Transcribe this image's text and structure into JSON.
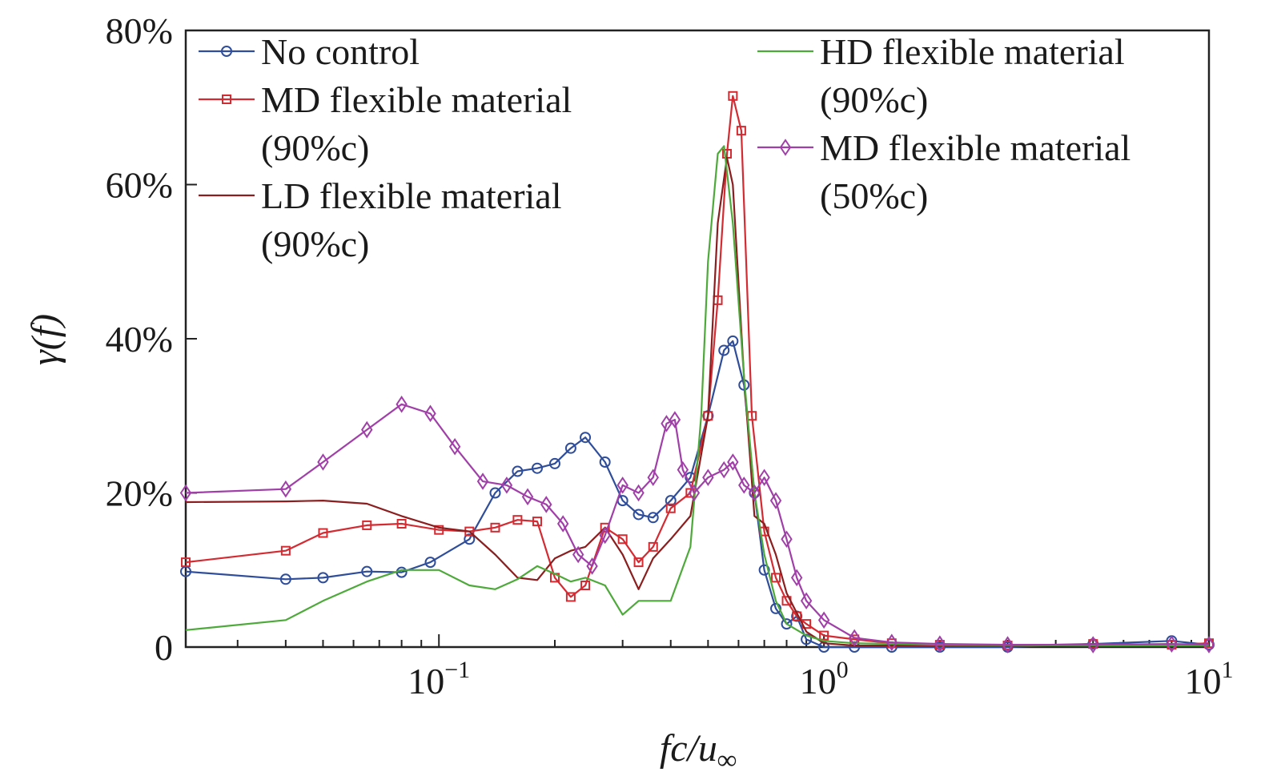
{
  "chart_data": {
    "type": "line",
    "title": "",
    "xlabel_parts": {
      "main": "fc/u",
      "sub": "∞"
    },
    "ylabel_parts": {
      "main": "γ(f)"
    },
    "x_scale": "log",
    "xlim": [
      0.022,
      10
    ],
    "ylim": [
      0,
      0.8
    ],
    "x_ticks": [
      {
        "value": 0.1,
        "base": "10",
        "exp": "−1"
      },
      {
        "value": 1,
        "base": "10",
        "exp": "0"
      },
      {
        "value": 10,
        "base": "10",
        "exp": "1"
      }
    ],
    "y_ticks": [
      {
        "value": 0,
        "label": "0"
      },
      {
        "value": 0.2,
        "label": "20%"
      },
      {
        "value": 0.4,
        "label": "40%"
      },
      {
        "value": 0.6,
        "label": "60%"
      },
      {
        "value": 0.8,
        "label": "80%"
      }
    ],
    "legend_position": "top",
    "series": [
      {
        "name": "No control",
        "legend_lines": [
          "No control"
        ],
        "color": "#2e4d9a",
        "marker": "circle",
        "x": [
          0.022,
          0.04,
          0.05,
          0.065,
          0.08,
          0.095,
          0.12,
          0.14,
          0.16,
          0.18,
          0.2,
          0.22,
          0.24,
          0.27,
          0.3,
          0.33,
          0.36,
          0.4,
          0.45,
          0.5,
          0.55,
          0.58,
          0.62,
          0.66,
          0.7,
          0.75,
          0.8,
          0.85,
          0.9,
          1.0,
          1.2,
          1.5,
          2,
          3,
          5,
          8,
          10
        ],
        "y": [
          0.098,
          0.088,
          0.09,
          0.098,
          0.097,
          0.11,
          0.14,
          0.2,
          0.228,
          0.232,
          0.238,
          0.258,
          0.272,
          0.24,
          0.19,
          0.172,
          0.168,
          0.19,
          0.22,
          0.3,
          0.385,
          0.397,
          0.34,
          0.2,
          0.1,
          0.05,
          0.03,
          0.04,
          0.01,
          0.0,
          0.0,
          0.0,
          0.0,
          0.0,
          0.004,
          0.008,
          0.003
        ]
      },
      {
        "name": "MD flexible material (90%c)",
        "legend_lines": [
          "MD flexible material",
          "(90%c)"
        ],
        "color": "#d42a32",
        "marker": "square",
        "x": [
          0.022,
          0.04,
          0.05,
          0.065,
          0.08,
          0.1,
          0.12,
          0.14,
          0.16,
          0.18,
          0.2,
          0.22,
          0.24,
          0.27,
          0.3,
          0.33,
          0.36,
          0.4,
          0.45,
          0.5,
          0.53,
          0.56,
          0.58,
          0.61,
          0.65,
          0.7,
          0.75,
          0.8,
          0.85,
          0.9,
          1.0,
          1.2,
          1.5,
          2,
          3,
          5,
          8,
          10
        ],
        "y": [
          0.11,
          0.125,
          0.148,
          0.158,
          0.16,
          0.152,
          0.15,
          0.155,
          0.165,
          0.163,
          0.09,
          0.065,
          0.08,
          0.155,
          0.14,
          0.11,
          0.13,
          0.18,
          0.2,
          0.3,
          0.45,
          0.64,
          0.715,
          0.67,
          0.3,
          0.15,
          0.09,
          0.06,
          0.04,
          0.03,
          0.015,
          0.01,
          0.005,
          0.003,
          0.002,
          0.004,
          0.003,
          0.005
        ]
      },
      {
        "name": "LD flexible material (90%c)",
        "legend_lines": [
          "LD flexible material",
          "(90%c)"
        ],
        "color": "#8b1e1e",
        "marker": "none",
        "x": [
          0.022,
          0.04,
          0.05,
          0.065,
          0.08,
          0.1,
          0.12,
          0.14,
          0.16,
          0.18,
          0.2,
          0.22,
          0.24,
          0.27,
          0.3,
          0.33,
          0.36,
          0.4,
          0.45,
          0.5,
          0.53,
          0.56,
          0.58,
          0.62,
          0.66,
          0.7,
          0.75,
          0.8,
          0.9,
          1.0,
          1.2,
          2,
          5,
          10
        ],
        "y": [
          0.188,
          0.189,
          0.19,
          0.186,
          0.17,
          0.155,
          0.15,
          0.12,
          0.09,
          0.087,
          0.115,
          0.125,
          0.13,
          0.155,
          0.12,
          0.075,
          0.115,
          0.14,
          0.17,
          0.3,
          0.55,
          0.635,
          0.6,
          0.35,
          0.17,
          0.16,
          0.12,
          0.07,
          0.02,
          0.005,
          0.002,
          0.002,
          0.002,
          0.002
        ]
      },
      {
        "name": "HD flexible material (90%c)",
        "legend_lines": [
          "HD flexible material",
          "(90%c)"
        ],
        "color": "#4daa3a",
        "marker": "none",
        "x": [
          0.022,
          0.04,
          0.05,
          0.065,
          0.08,
          0.1,
          0.12,
          0.14,
          0.16,
          0.18,
          0.2,
          0.22,
          0.24,
          0.27,
          0.3,
          0.33,
          0.36,
          0.4,
          0.45,
          0.48,
          0.5,
          0.53,
          0.55,
          0.58,
          0.62,
          0.66,
          0.7,
          0.75,
          0.8,
          0.9,
          1.0,
          1.2,
          2,
          5,
          10
        ],
        "y": [
          0.022,
          0.035,
          0.06,
          0.085,
          0.1,
          0.1,
          0.08,
          0.075,
          0.088,
          0.105,
          0.095,
          0.085,
          0.09,
          0.08,
          0.042,
          0.06,
          0.06,
          0.06,
          0.13,
          0.3,
          0.5,
          0.64,
          0.65,
          0.55,
          0.35,
          0.2,
          0.12,
          0.06,
          0.03,
          0.015,
          0.008,
          0.005,
          0.003,
          0.002,
          0.002
        ]
      },
      {
        "name": "MD flexible material (50%c)",
        "legend_lines": [
          "MD flexible material",
          "(50%c)"
        ],
        "color": "#a03fa8",
        "marker": "diamond",
        "x": [
          0.022,
          0.04,
          0.05,
          0.065,
          0.08,
          0.095,
          0.11,
          0.13,
          0.15,
          0.17,
          0.19,
          0.21,
          0.23,
          0.25,
          0.27,
          0.3,
          0.33,
          0.36,
          0.39,
          0.41,
          0.43,
          0.46,
          0.5,
          0.55,
          0.58,
          0.62,
          0.66,
          0.7,
          0.75,
          0.8,
          0.85,
          0.9,
          1.0,
          1.2,
          1.5,
          2,
          3,
          5,
          8,
          10
        ],
        "y": [
          0.2,
          0.205,
          0.24,
          0.282,
          0.315,
          0.303,
          0.26,
          0.215,
          0.21,
          0.195,
          0.185,
          0.16,
          0.12,
          0.105,
          0.145,
          0.21,
          0.2,
          0.22,
          0.29,
          0.295,
          0.23,
          0.2,
          0.22,
          0.23,
          0.24,
          0.21,
          0.2,
          0.22,
          0.19,
          0.14,
          0.09,
          0.06,
          0.035,
          0.012,
          0.006,
          0.004,
          0.003,
          0.003,
          0.004,
          0.003
        ]
      }
    ]
  }
}
